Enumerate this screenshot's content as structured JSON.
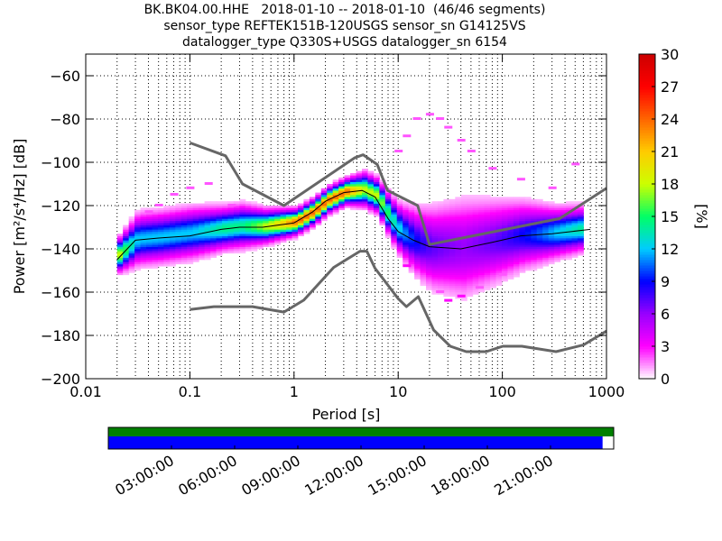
{
  "figure": {
    "title_lines": [
      "BK.BK04.00.HHE   2018-01-10 -- 2018-01-10  (46/46 segments)",
      "sensor_type REFTEK151B-120USGS sensor_sn G14125VS",
      "datalogger_type Q330S+USGS datalogger_sn 6154"
    ]
  },
  "chart_data": {
    "type": "heatmap",
    "xlabel": "Period [s]",
    "ylabel": "Power [m²/s⁴/Hz] [dB]",
    "x_scale": "log",
    "xlim": [
      0.01,
      1000
    ],
    "ylim": [
      -200,
      -50
    ],
    "x_ticks": [
      0.01,
      0.1,
      1,
      10,
      100,
      1000
    ],
    "x_tick_labels": [
      "0.01",
      "0.1",
      "1",
      "10",
      "100",
      "1000"
    ],
    "y_ticks": [
      -200,
      -180,
      -160,
      -140,
      -120,
      -100,
      -80,
      -60
    ],
    "y_tick_labels": [
      "−200",
      "−180",
      "−160",
      "−140",
      "−120",
      "−100",
      "−80",
      "−60"
    ],
    "grid": true,
    "colorbar": {
      "label": "[%]",
      "range": [
        0,
        30
      ],
      "ticks": [
        0,
        3,
        6,
        9,
        12,
        15,
        18,
        21,
        24,
        27,
        30
      ],
      "colormap": "pqlx",
      "colors": [
        "#ffffff",
        "#ff00ff",
        "#9900ff",
        "#0000ff",
        "#00ccff",
        "#00ff66",
        "#ccff00",
        "#ffcc00",
        "#ff6600",
        "#ff0000",
        "#cc0000"
      ]
    },
    "noise_models": [
      {
        "kind": "high",
        "color": "#666666",
        "points": [
          [
            0.1,
            -91
          ],
          [
            0.22,
            -97
          ],
          [
            0.32,
            -110
          ],
          [
            0.8,
            -120
          ],
          [
            3.8,
            -98
          ],
          [
            4.6,
            -96.5
          ],
          [
            6.3,
            -101
          ],
          [
            7.9,
            -113
          ],
          [
            15.4,
            -120
          ],
          [
            20,
            -138
          ],
          [
            354.8,
            -126
          ],
          [
            1000,
            -112
          ]
        ]
      },
      {
        "kind": "low",
        "color": "#666666",
        "points": [
          [
            0.1,
            -168
          ],
          [
            0.17,
            -166.7
          ],
          [
            0.4,
            -166.7
          ],
          [
            0.8,
            -169.2
          ],
          [
            1.24,
            -163.7
          ],
          [
            2.4,
            -148.6
          ],
          [
            4.3,
            -141.1
          ],
          [
            5.0,
            -141.1
          ],
          [
            6.0,
            -149
          ],
          [
            10.0,
            -163
          ],
          [
            12.0,
            -166.7
          ],
          [
            15.6,
            -162.1
          ],
          [
            21.9,
            -177.5
          ],
          [
            31.6,
            -185
          ],
          [
            45,
            -187.5
          ],
          [
            70,
            -187.5
          ],
          [
            101,
            -185
          ],
          [
            154,
            -185
          ],
          [
            328,
            -187.5
          ],
          [
            600,
            -184.4
          ],
          [
            1000,
            -178
          ]
        ]
      }
    ],
    "mean_curve": {
      "color": "#000000",
      "points": [
        [
          0.02,
          -145
        ],
        [
          0.03,
          -136
        ],
        [
          0.05,
          -135
        ],
        [
          0.1,
          -134
        ],
        [
          0.2,
          -131
        ],
        [
          0.3,
          -130
        ],
        [
          0.5,
          -130
        ],
        [
          1,
          -128
        ],
        [
          1.5,
          -123
        ],
        [
          2,
          -118
        ],
        [
          3,
          -114
        ],
        [
          4.5,
          -113
        ],
        [
          6,
          -116
        ],
        [
          8,
          -126
        ],
        [
          10,
          -132
        ],
        [
          14,
          -136
        ],
        [
          20,
          -139
        ],
        [
          40,
          -140
        ],
        [
          80,
          -137
        ],
        [
          150,
          -134
        ],
        [
          300,
          -133
        ],
        [
          700,
          -131
        ]
      ]
    },
    "psd_band": [
      {
        "period": 0.02,
        "center": -143,
        "spread": 4
      },
      {
        "period": 0.03,
        "center": -136,
        "spread": 6
      },
      {
        "period": 0.05,
        "center": -135,
        "spread": 6
      },
      {
        "period": 0.1,
        "center": -133,
        "spread": 6
      },
      {
        "period": 0.2,
        "center": -131,
        "spread": 5
      },
      {
        "period": 0.3,
        "center": -130,
        "spread": 5
      },
      {
        "period": 0.5,
        "center": -130,
        "spread": 4
      },
      {
        "period": 1,
        "center": -128,
        "spread": 3
      },
      {
        "period": 1.5,
        "center": -123,
        "spread": 3
      },
      {
        "period": 2,
        "center": -118,
        "spread": 3
      },
      {
        "period": 3,
        "center": -114,
        "spread": 3
      },
      {
        "period": 4.5,
        "center": -113,
        "spread": 4
      },
      {
        "period": 6,
        "center": -116,
        "spread": 4
      },
      {
        "period": 8,
        "center": -126,
        "spread": 5
      },
      {
        "period": 10,
        "center": -132,
        "spread": 6
      },
      {
        "period": 14,
        "center": -137,
        "spread": 8
      },
      {
        "period": 20,
        "center": -140,
        "spread": 10
      },
      {
        "period": 40,
        "center": -140,
        "spread": 12
      },
      {
        "period": 80,
        "center": -137,
        "spread": 10
      },
      {
        "period": 150,
        "center": -134,
        "spread": 8
      },
      {
        "period": 300,
        "center": -133,
        "spread": 6
      },
      {
        "period": 600,
        "center": -131,
        "spread": 5
      }
    ],
    "outliers": [
      {
        "period": 0.04,
        "power": -123,
        "percent": 2
      },
      {
        "period": 0.05,
        "power": -120,
        "percent": 2
      },
      {
        "period": 0.07,
        "power": -115,
        "percent": 2
      },
      {
        "period": 0.1,
        "power": -112,
        "percent": 2
      },
      {
        "period": 0.15,
        "power": -110,
        "percent": 2
      },
      {
        "period": 0.25,
        "power": -120,
        "percent": 2
      },
      {
        "period": 10,
        "power": -95,
        "percent": 2
      },
      {
        "period": 12,
        "power": -88,
        "percent": 2
      },
      {
        "period": 15,
        "power": -80,
        "percent": 2
      },
      {
        "period": 20,
        "power": -78,
        "percent": 2
      },
      {
        "period": 25,
        "power": -80,
        "percent": 2
      },
      {
        "period": 30,
        "power": -84,
        "percent": 2
      },
      {
        "period": 40,
        "power": -90,
        "percent": 2
      },
      {
        "period": 50,
        "power": -95,
        "percent": 2
      },
      {
        "period": 80,
        "power": -103,
        "percent": 2
      },
      {
        "period": 150,
        "power": -108,
        "percent": 2
      },
      {
        "period": 300,
        "power": -112,
        "percent": 2
      },
      {
        "period": 500,
        "power": -101,
        "percent": 2
      },
      {
        "period": 25,
        "power": -160,
        "percent": 2
      },
      {
        "period": 30,
        "power": -164,
        "percent": 3
      },
      {
        "period": 40,
        "power": -162,
        "percent": 3
      },
      {
        "period": 60,
        "power": -158,
        "percent": 2
      },
      {
        "period": 100,
        "power": -152,
        "percent": 2
      },
      {
        "period": 12,
        "power": -148,
        "percent": 3
      }
    ],
    "time_coverage": {
      "tick_labels": [
        "03:00:00",
        "06:00:00",
        "09:00:00",
        "12:00:00",
        "15:00:00",
        "18:00:00",
        "21:00:00"
      ],
      "data_color": "#008000",
      "used_color": "#0000ff",
      "data_fraction": 1.0,
      "used_fraction": 0.978
    }
  }
}
